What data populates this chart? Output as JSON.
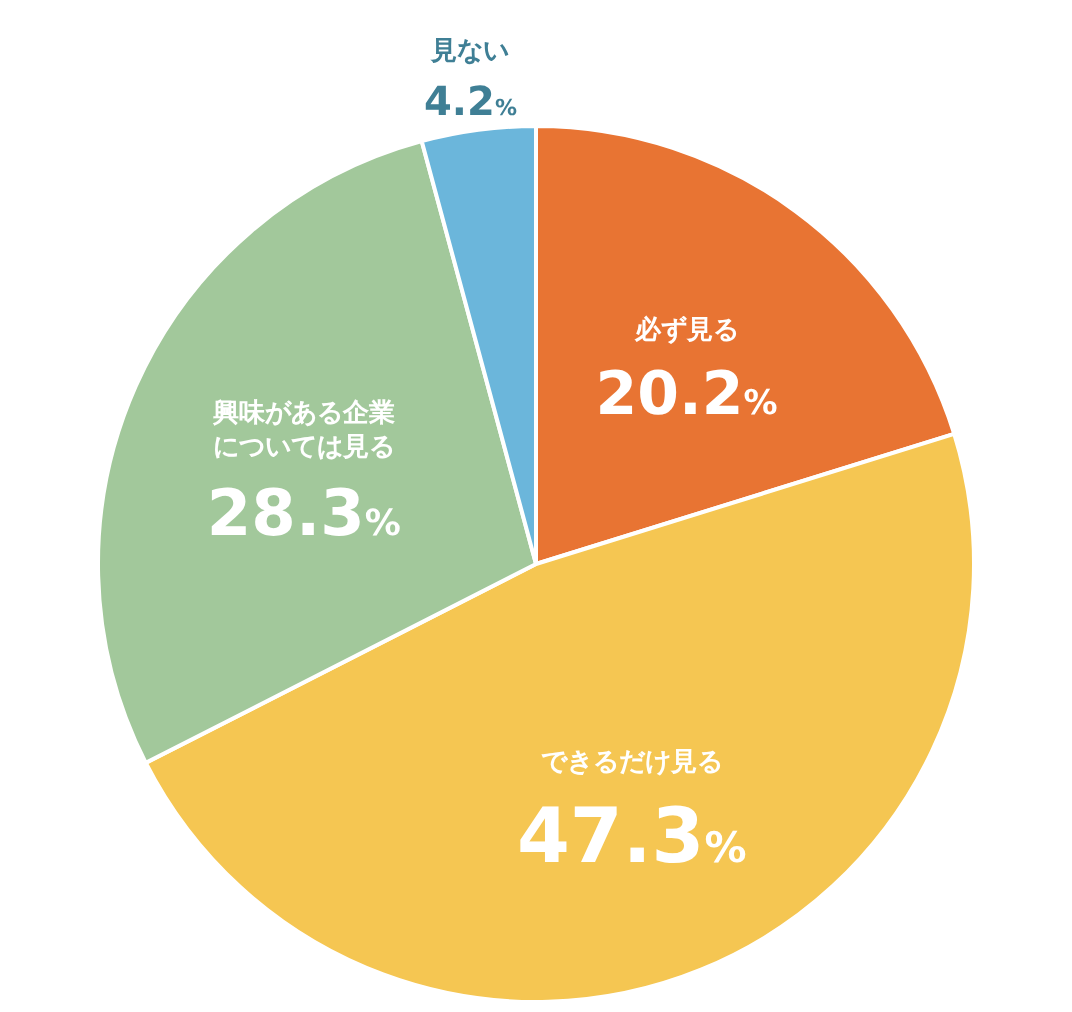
{
  "chart_data": {
    "type": "pie",
    "categories": [
      "必ず見る",
      "できるだけ見る",
      "興味がある企業については見る",
      "見ない"
    ],
    "values": [
      20.2,
      47.3,
      28.3,
      4.2
    ],
    "colors": [
      "#e87433",
      "#f5c652",
      "#a2c89b",
      "#6bb6db"
    ],
    "value_labels": [
      "20.2%",
      "47.3%",
      "28.3%",
      "4.2%"
    ],
    "legend": false
  }
}
